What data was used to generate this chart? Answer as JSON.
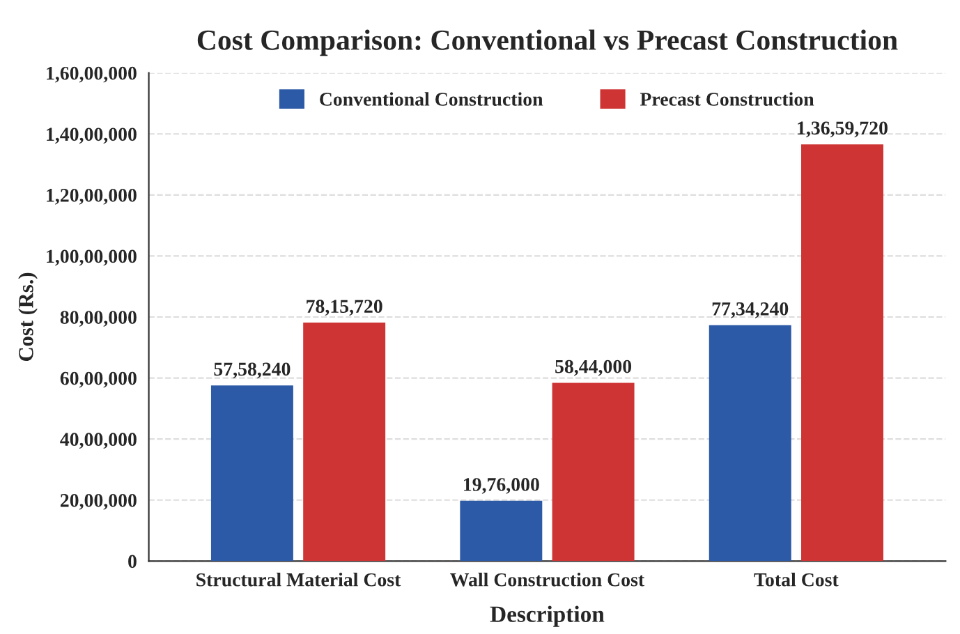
{
  "chart_data": {
    "type": "bar",
    "title": "Cost Comparison: Conventional vs Precast Construction",
    "xlabel": "Description",
    "ylabel": "Cost (Rs.)",
    "categories": [
      "Structural Material Cost",
      "Wall Construction Cost",
      "Total Cost"
    ],
    "series": [
      {
        "name": "Conventional Construction",
        "color": "#2d5aa6",
        "values": [
          5758240,
          1976000,
          7734240
        ],
        "value_labels": [
          "57,58,240",
          "19,76,000",
          "77,34,240"
        ]
      },
      {
        "name": "Precast Construction",
        "color": "#cf3434",
        "values": [
          7815720,
          5844000,
          13659720
        ],
        "value_labels": [
          "78,15,720",
          "58,44,000",
          "1,36,59,720"
        ]
      }
    ],
    "ylim": [
      0,
      16000000
    ],
    "yticks": [
      0,
      {
        "value": 2000000,
        "label": "20,00,000"
      },
      {
        "value": 4000000,
        "label": "40,00,000"
      },
      {
        "value": 6000000,
        "label": "60,00,000"
      },
      {
        "value": 8000000,
        "label": "80,00,000"
      },
      {
        "value": 10000000,
        "label": "1,00,00,000"
      },
      {
        "value": 12000000,
        "label": "1,20,00,000"
      },
      {
        "value": 14000000,
        "label": "1,40,00,000"
      },
      {
        "value": 16000000,
        "label": "1,60,00,000"
      }
    ],
    "grid": "y",
    "legend": "top"
  }
}
